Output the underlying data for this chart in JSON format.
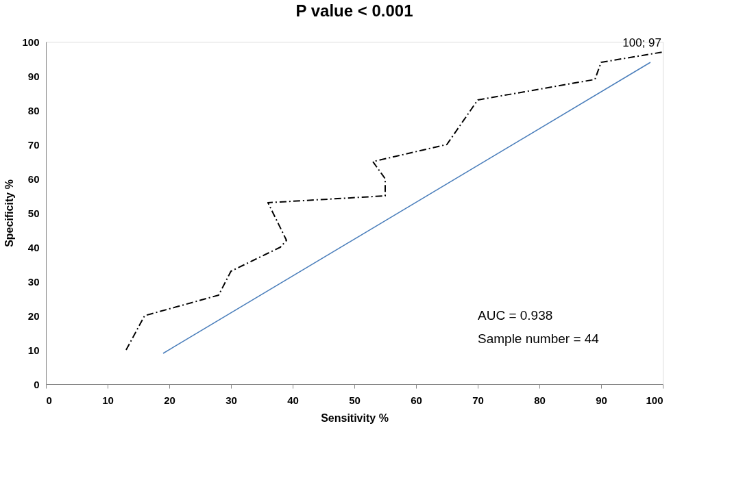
{
  "chart_data": {
    "type": "line",
    "title": "P value < 0.001",
    "xlabel": "Sensitivity %",
    "ylabel": "Specificity %",
    "xlim": [
      0,
      100
    ],
    "xticks": [
      0,
      10,
      20,
      30,
      40,
      50,
      60,
      70,
      80,
      90,
      100
    ],
    "ylim": [
      0,
      100
    ],
    "yticks": [
      0,
      10,
      20,
      30,
      40,
      50,
      60,
      70,
      80,
      90,
      100
    ],
    "grid": false,
    "marker": "none",
    "series": [
      {
        "color": "#000000",
        "line_style": "dashed",
        "x": [
          13,
          16,
          28,
          30,
          38,
          39,
          36,
          55,
          55,
          53,
          65,
          70,
          89,
          90,
          100
        ],
        "values": [
          10,
          20,
          26,
          33,
          40,
          42,
          53,
          55,
          60,
          65,
          70,
          83,
          89,
          94,
          97
        ]
      },
      {
        "color": "#4a7ebb",
        "line_style": "solid",
        "x": [
          19,
          98
        ],
        "values": [
          9,
          94
        ]
      }
    ],
    "annotations": [
      {
        "text": "100; 97",
        "x": 100,
        "y": 97
      },
      "AUC = 0.938",
      "Sample number = 44"
    ]
  }
}
